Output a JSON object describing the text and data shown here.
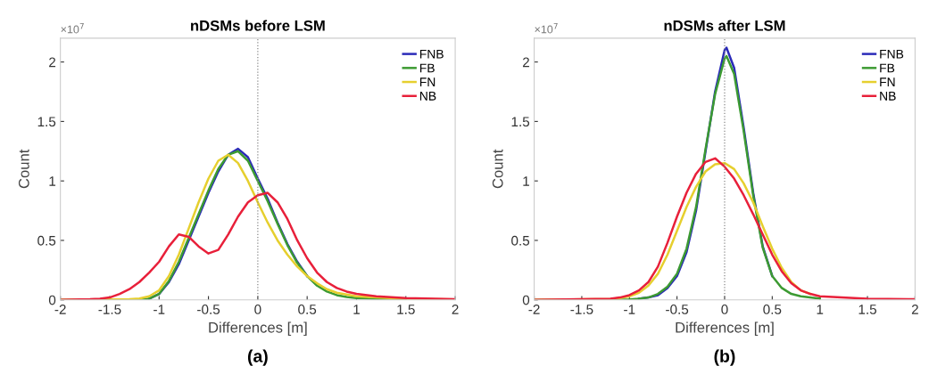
{
  "chart_data": [
    {
      "type": "line",
      "title": "nDSMs before LSM",
      "xlabel": "Differences [m]",
      "ylabel": "Count",
      "xlim": [
        -2,
        2
      ],
      "xticks": [
        -2,
        -1.5,
        -1,
        -0.5,
        0,
        0.5,
        1,
        1.5,
        2
      ],
      "ylim": [
        0,
        2.2
      ],
      "yticks": [
        0,
        0.5,
        1,
        1.5,
        2
      ],
      "grid": false,
      "legend": "top right",
      "line_style": "solid",
      "marker": "none",
      "ref_lines": [
        {
          "axis": "x",
          "value": 0,
          "color": "#888888",
          "line_style": "dotted"
        }
      ],
      "annotations": [
        "×10$^{7}$",
        "(a)"
      ],
      "series": [
        {
          "name": "FNB",
          "color": "#2a2ab8",
          "x": [
            -1.1,
            -1.0,
            -0.9,
            -0.8,
            -0.7,
            -0.6,
            -0.5,
            -0.4,
            -0.3,
            -0.2,
            -0.1,
            0,
            0.1,
            0.2,
            0.3,
            0.4,
            0.5
          ],
          "values": [
            0.01,
            0.05,
            0.15,
            0.3,
            0.5,
            0.7,
            0.9,
            1.08,
            1.22,
            1.27,
            1.2,
            1.02,
            0.85,
            0.65,
            0.47,
            0.32,
            0.2
          ]
        },
        {
          "name": "FB",
          "color": "#3c9a32",
          "x": [
            -2,
            -1.2,
            -1.1,
            -1.0,
            -0.9,
            -0.8,
            -0.7,
            -0.6,
            -0.5,
            -0.4,
            -0.3,
            -0.2,
            -0.1,
            0,
            0.1,
            0.2,
            0.3,
            0.4,
            0.5,
            0.6,
            0.7,
            0.8,
            0.9,
            1.0,
            1.2,
            1.5
          ],
          "values": [
            0,
            0,
            0.01,
            0.05,
            0.16,
            0.32,
            0.52,
            0.72,
            0.92,
            1.1,
            1.22,
            1.25,
            1.17,
            1.0,
            0.83,
            0.64,
            0.46,
            0.31,
            0.2,
            0.12,
            0.07,
            0.04,
            0.025,
            0.015,
            0.008,
            0.004
          ]
        },
        {
          "name": "FN",
          "color": "#e6cf2e",
          "x": [
            -2,
            -1.3,
            -1.2,
            -1.1,
            -1.0,
            -0.9,
            -0.8,
            -0.7,
            -0.6,
            -0.5,
            -0.4,
            -0.3,
            -0.2,
            -0.1,
            0,
            0.1,
            0.2,
            0.3,
            0.4,
            0.5,
            0.6,
            0.7,
            0.8,
            1.0,
            1.5,
            2
          ],
          "values": [
            0,
            0.005,
            0.012,
            0.03,
            0.08,
            0.2,
            0.38,
            0.6,
            0.82,
            1.02,
            1.17,
            1.22,
            1.15,
            1.0,
            0.82,
            0.65,
            0.5,
            0.38,
            0.28,
            0.2,
            0.14,
            0.09,
            0.06,
            0.03,
            0.008,
            0.003
          ]
        },
        {
          "name": "NB",
          "color": "#e8203a",
          "x": [
            -2,
            -1.7,
            -1.6,
            -1.5,
            -1.4,
            -1.3,
            -1.2,
            -1.1,
            -1.0,
            -0.9,
            -0.8,
            -0.7,
            -0.6,
            -0.5,
            -0.4,
            -0.3,
            -0.2,
            -0.1,
            0,
            0.1,
            0.2,
            0.3,
            0.4,
            0.5,
            0.6,
            0.7,
            0.8,
            0.9,
            1.0,
            1.2,
            1.5,
            2
          ],
          "values": [
            0,
            0.005,
            0.01,
            0.02,
            0.05,
            0.09,
            0.15,
            0.23,
            0.32,
            0.45,
            0.55,
            0.53,
            0.45,
            0.39,
            0.42,
            0.55,
            0.7,
            0.82,
            0.88,
            0.9,
            0.82,
            0.68,
            0.5,
            0.35,
            0.23,
            0.15,
            0.1,
            0.07,
            0.05,
            0.03,
            0.015,
            0.005
          ]
        }
      ]
    },
    {
      "type": "line",
      "title": "nDSMs after LSM",
      "xlabel": "Differences [m]",
      "ylabel": "Count",
      "xlim": [
        -2,
        2
      ],
      "xticks": [
        -2,
        -1.5,
        -1,
        -0.5,
        0,
        0.5,
        1,
        1.5,
        2
      ],
      "ylim": [
        0,
        2.2
      ],
      "yticks": [
        0,
        0.5,
        1,
        1.5,
        2
      ],
      "grid": false,
      "legend": "top right",
      "line_style": "solid",
      "marker": "none",
      "ref_lines": [
        {
          "axis": "x",
          "value": 0,
          "color": "#888888",
          "line_style": "dotted"
        }
      ],
      "annotations": [
        "×10$^{7}$",
        "(b)"
      ],
      "series": [
        {
          "name": "FNB",
          "color": "#2a2ab8",
          "x": [
            -0.9,
            -0.8,
            -0.7,
            -0.6,
            -0.5,
            -0.4,
            -0.3,
            -0.2,
            -0.1,
            0,
            0.02,
            0.1,
            0.2,
            0.3,
            0.4,
            0.5
          ],
          "values": [
            0.01,
            0.02,
            0.04,
            0.1,
            0.2,
            0.4,
            0.75,
            1.25,
            1.75,
            2.1,
            2.12,
            1.95,
            1.45,
            0.9,
            0.45,
            0.2
          ]
        },
        {
          "name": "FB",
          "color": "#3c9a32",
          "x": [
            -2,
            -1.0,
            -0.9,
            -0.8,
            -0.7,
            -0.6,
            -0.5,
            -0.4,
            -0.3,
            -0.2,
            -0.1,
            0,
            0.02,
            0.1,
            0.2,
            0.3,
            0.4,
            0.5,
            0.6,
            0.7,
            0.8,
            1.0
          ],
          "values": [
            0,
            0.003,
            0.01,
            0.02,
            0.05,
            0.11,
            0.22,
            0.43,
            0.78,
            1.27,
            1.73,
            2.03,
            2.05,
            1.9,
            1.42,
            0.88,
            0.44,
            0.2,
            0.1,
            0.05,
            0.03,
            0.01
          ]
        },
        {
          "name": "FN",
          "color": "#e6cf2e",
          "x": [
            -2,
            -1.2,
            -1.1,
            -1.0,
            -0.9,
            -0.8,
            -0.7,
            -0.6,
            -0.5,
            -0.4,
            -0.3,
            -0.2,
            -0.1,
            0,
            0.1,
            0.2,
            0.3,
            0.4,
            0.5,
            0.6,
            0.7,
            0.8,
            0.9
          ],
          "values": [
            0,
            0.008,
            0.015,
            0.03,
            0.06,
            0.12,
            0.22,
            0.38,
            0.58,
            0.78,
            0.95,
            1.08,
            1.14,
            1.15,
            1.1,
            0.98,
            0.82,
            0.62,
            0.43,
            0.27,
            0.15,
            0.08,
            0.05
          ]
        },
        {
          "name": "NB",
          "color": "#e8203a",
          "x": [
            -2,
            -1.2,
            -1.1,
            -1.0,
            -0.9,
            -0.8,
            -0.7,
            -0.6,
            -0.5,
            -0.4,
            -0.3,
            -0.2,
            -0.1,
            0,
            0.1,
            0.2,
            0.3,
            0.4,
            0.5,
            0.6,
            0.7,
            0.8,
            0.9,
            1.0,
            1.5,
            2
          ],
          "values": [
            0,
            0.01,
            0.02,
            0.04,
            0.08,
            0.15,
            0.28,
            0.48,
            0.7,
            0.9,
            1.06,
            1.16,
            1.19,
            1.12,
            1.02,
            0.88,
            0.72,
            0.55,
            0.38,
            0.24,
            0.14,
            0.08,
            0.05,
            0.03,
            0.01,
            0.005
          ]
        }
      ]
    }
  ]
}
